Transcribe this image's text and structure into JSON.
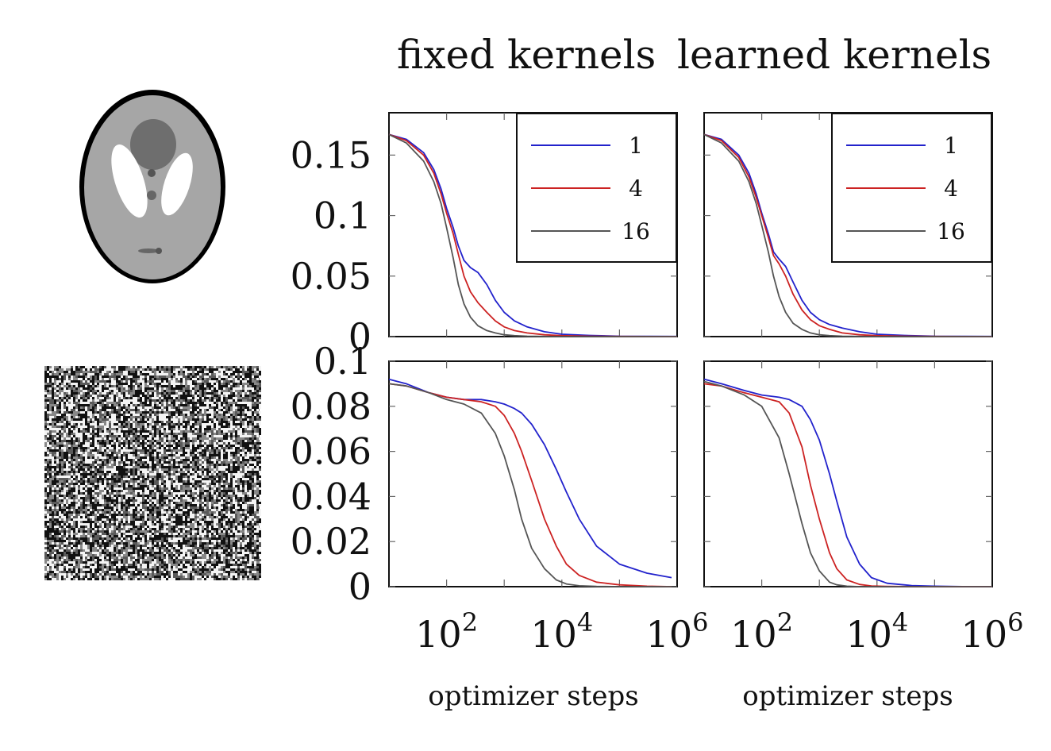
{
  "header": {
    "col1_title": "fixed kernels",
    "col2_title": "learned kernels"
  },
  "shared": {
    "xlabel": "optimizer steps",
    "x_scale": "log",
    "x_tick_labels": [
      "10^2",
      "10^4",
      "10^6"
    ],
    "legend": {
      "placement": "top-right",
      "entries": [
        {
          "label": "1",
          "color": "#2222cc"
        },
        {
          "label": "4",
          "color": "#cc2222"
        },
        {
          "label": "16",
          "color": "#555555"
        }
      ]
    }
  },
  "row_images": [
    {
      "kind": "phantom-image",
      "description_hidden": true
    },
    {
      "kind": "noise-image",
      "description_hidden": true
    }
  ],
  "chart_data": [
    {
      "type": "line",
      "panel": "top-left",
      "column": "fixed kernels",
      "x_scale": "log",
      "xlim": [
        10,
        1000000
      ],
      "ylim": [
        0,
        0.185
      ],
      "yticks": [
        0,
        0.05,
        0.1,
        0.15
      ],
      "ytick_labels": [
        "0",
        "0.05",
        "0.1",
        "0.15"
      ],
      "legend": true,
      "series": [
        {
          "name": "1",
          "color": "#2222cc",
          "x": [
            10,
            20,
            40,
            60,
            80,
            100,
            130,
            160,
            200,
            260,
            350,
            500,
            700,
            1000,
            1500,
            2500,
            5000,
            10000,
            30000,
            100000,
            1000000
          ],
          "y": [
            0.167,
            0.163,
            0.152,
            0.138,
            0.122,
            0.106,
            0.09,
            0.075,
            0.063,
            0.057,
            0.053,
            0.043,
            0.03,
            0.02,
            0.013,
            0.008,
            0.004,
            0.002,
            0.001,
            0.0003,
            0.0001
          ]
        },
        {
          "name": "4",
          "color": "#cc2222",
          "x": [
            10,
            20,
            40,
            60,
            80,
            100,
            130,
            160,
            200,
            260,
            350,
            500,
            700,
            1000,
            1500,
            2500,
            5000,
            10000,
            30000,
            100000,
            1000000
          ],
          "y": [
            0.167,
            0.162,
            0.15,
            0.135,
            0.118,
            0.102,
            0.085,
            0.068,
            0.05,
            0.037,
            0.028,
            0.02,
            0.013,
            0.008,
            0.005,
            0.003,
            0.0015,
            0.0008,
            0.0003,
            0.0001,
            0.0
          ]
        },
        {
          "name": "16",
          "color": "#555555",
          "x": [
            10,
            20,
            40,
            60,
            80,
            100,
            130,
            160,
            200,
            260,
            350,
            500,
            700,
            1000,
            1500,
            2500,
            5000,
            10000,
            30000,
            100000,
            1000000
          ],
          "y": [
            0.167,
            0.16,
            0.145,
            0.128,
            0.11,
            0.09,
            0.065,
            0.043,
            0.027,
            0.016,
            0.009,
            0.005,
            0.003,
            0.0015,
            0.0008,
            0.0003,
            0.0001,
            0.0,
            0.0,
            0.0,
            0.0
          ]
        }
      ]
    },
    {
      "type": "line",
      "panel": "top-right",
      "column": "learned kernels",
      "x_scale": "log",
      "xlim": [
        10,
        1000000
      ],
      "ylim": [
        0,
        0.185
      ],
      "yticks": [
        0,
        0.05,
        0.1,
        0.15
      ],
      "legend": true,
      "series": [
        {
          "name": "1",
          "color": "#2222cc",
          "x": [
            10,
            20,
            40,
            60,
            80,
            100,
            130,
            160,
            200,
            260,
            350,
            500,
            700,
            1000,
            1500,
            2500,
            5000,
            10000,
            30000,
            100000,
            1000000
          ],
          "y": [
            0.167,
            0.163,
            0.15,
            0.135,
            0.118,
            0.102,
            0.085,
            0.07,
            0.064,
            0.058,
            0.045,
            0.03,
            0.02,
            0.014,
            0.01,
            0.007,
            0.004,
            0.002,
            0.001,
            0.0003,
            0.0001
          ]
        },
        {
          "name": "4",
          "color": "#cc2222",
          "x": [
            10,
            20,
            40,
            60,
            80,
            100,
            130,
            160,
            200,
            260,
            350,
            500,
            700,
            1000,
            1500,
            2500,
            5000,
            10000,
            30000,
            100000,
            1000000
          ],
          "y": [
            0.167,
            0.162,
            0.148,
            0.132,
            0.115,
            0.1,
            0.082,
            0.067,
            0.06,
            0.05,
            0.035,
            0.022,
            0.014,
            0.009,
            0.006,
            0.003,
            0.0015,
            0.0008,
            0.0003,
            0.0001,
            0.0
          ]
        },
        {
          "name": "16",
          "color": "#555555",
          "x": [
            10,
            20,
            40,
            60,
            80,
            100,
            130,
            160,
            200,
            260,
            350,
            500,
            700,
            1000,
            1500,
            2500,
            5000,
            10000,
            30000,
            100000,
            1000000
          ],
          "y": [
            0.167,
            0.16,
            0.145,
            0.128,
            0.11,
            0.092,
            0.07,
            0.05,
            0.033,
            0.02,
            0.011,
            0.006,
            0.003,
            0.0015,
            0.0008,
            0.0003,
            0.0001,
            0.0,
            0.0,
            0.0,
            0.0
          ]
        }
      ]
    },
    {
      "type": "line",
      "panel": "bottom-left",
      "column": "fixed kernels",
      "x_scale": "log",
      "xlim": [
        10,
        1000000
      ],
      "ylim": [
        0,
        0.1
      ],
      "yticks": [
        0,
        0.02,
        0.04,
        0.06,
        0.08,
        0.1
      ],
      "ytick_labels": [
        "0",
        "0.02",
        "0.04",
        "0.06",
        "0.08",
        "0.1"
      ],
      "legend": false,
      "series": [
        {
          "name": "1",
          "color": "#2222cc",
          "x": [
            10,
            20,
            50,
            100,
            200,
            400,
            700,
            1000,
            1500,
            2000,
            3000,
            5000,
            8000,
            12000,
            20000,
            40000,
            100000,
            300000,
            800000
          ],
          "y": [
            0.092,
            0.09,
            0.086,
            0.084,
            0.083,
            0.083,
            0.082,
            0.081,
            0.079,
            0.077,
            0.072,
            0.063,
            0.052,
            0.042,
            0.03,
            0.018,
            0.01,
            0.006,
            0.004
          ]
        },
        {
          "name": "4",
          "color": "#cc2222",
          "x": [
            10,
            20,
            50,
            100,
            200,
            400,
            700,
            1000,
            1500,
            2000,
            3000,
            5000,
            8000,
            12000,
            20000,
            40000,
            100000,
            300000,
            800000
          ],
          "y": [
            0.09,
            0.089,
            0.086,
            0.084,
            0.083,
            0.082,
            0.08,
            0.076,
            0.068,
            0.06,
            0.047,
            0.03,
            0.018,
            0.01,
            0.005,
            0.002,
            0.0008,
            0.0002,
            0.0
          ]
        },
        {
          "name": "16",
          "color": "#555555",
          "x": [
            10,
            20,
            50,
            100,
            200,
            400,
            700,
            1000,
            1500,
            2000,
            3000,
            5000,
            8000,
            12000,
            20000,
            40000,
            100000,
            300000,
            800000
          ],
          "y": [
            0.09,
            0.089,
            0.086,
            0.083,
            0.081,
            0.077,
            0.068,
            0.058,
            0.043,
            0.03,
            0.017,
            0.008,
            0.003,
            0.0012,
            0.0004,
            0.0001,
            0.0,
            0.0,
            0.0
          ]
        }
      ]
    },
    {
      "type": "line",
      "panel": "bottom-right",
      "column": "learned kernels",
      "x_scale": "log",
      "xlim": [
        10,
        1000000
      ],
      "ylim": [
        0,
        0.1
      ],
      "yticks": [
        0,
        0.02,
        0.04,
        0.06,
        0.08,
        0.1
      ],
      "legend": false,
      "series": [
        {
          "name": "1",
          "color": "#2222cc",
          "x": [
            10,
            20,
            50,
            100,
            200,
            300,
            500,
            700,
            1000,
            1500,
            2000,
            3000,
            5000,
            8000,
            15000,
            40000,
            100000,
            400000,
            1000000
          ],
          "y": [
            0.092,
            0.09,
            0.087,
            0.085,
            0.084,
            0.083,
            0.08,
            0.074,
            0.065,
            0.05,
            0.038,
            0.022,
            0.01,
            0.004,
            0.0015,
            0.0005,
            0.0002,
            0.0,
            0.0
          ]
        },
        {
          "name": "4",
          "color": "#cc2222",
          "x": [
            10,
            20,
            50,
            100,
            200,
            300,
            500,
            700,
            1000,
            1500,
            2000,
            3000,
            5000,
            8000,
            15000,
            40000,
            100000,
            400000,
            1000000
          ],
          "y": [
            0.09,
            0.089,
            0.086,
            0.084,
            0.082,
            0.077,
            0.062,
            0.045,
            0.03,
            0.015,
            0.008,
            0.003,
            0.001,
            0.0003,
            0.0001,
            0.0,
            0.0,
            0.0,
            0.0
          ]
        },
        {
          "name": "16",
          "color": "#555555",
          "x": [
            10,
            20,
            50,
            100,
            200,
            300,
            500,
            700,
            1000,
            1500,
            2000,
            3000,
            5000,
            8000,
            15000,
            40000,
            100000,
            400000,
            1000000
          ],
          "y": [
            0.091,
            0.089,
            0.085,
            0.08,
            0.066,
            0.05,
            0.028,
            0.015,
            0.007,
            0.002,
            0.0008,
            0.0002,
            0.0,
            0.0,
            0.0,
            0.0,
            0.0,
            0.0,
            0.0
          ]
        }
      ]
    }
  ]
}
